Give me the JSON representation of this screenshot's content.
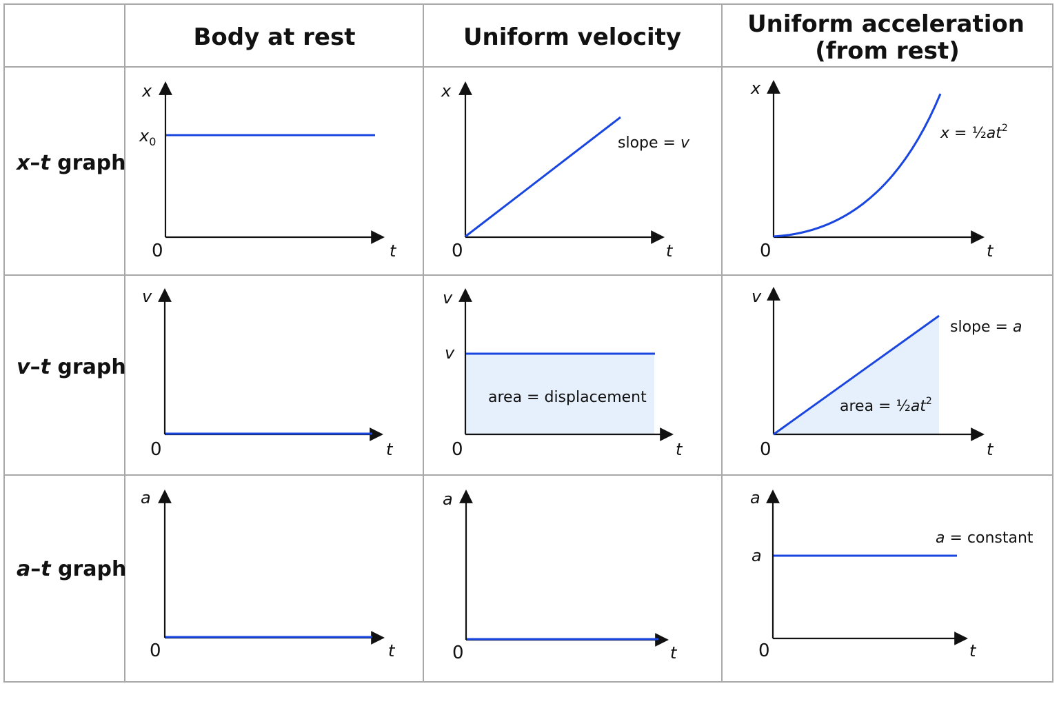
{
  "columns": {
    "rest": "Body at rest",
    "uniform_velocity": "Uniform velocity",
    "uniform_accel_line1": "Uniform acceleration",
    "uniform_accel_line2": "(from rest)"
  },
  "rows": {
    "xt": {
      "var": "x",
      "dash": "–",
      "var2": "t",
      "word": " graph"
    },
    "vt": {
      "var": "v",
      "dash": "–",
      "var2": "t",
      "word": " graph"
    },
    "at": {
      "var": "a",
      "dash": "–",
      "var2": "t",
      "word": " graph"
    }
  },
  "axis": {
    "zero": "0",
    "t": "t",
    "x": "x",
    "v": "v",
    "a": "a",
    "x0_base": "x",
    "x0_sub": "0"
  },
  "annotations": {
    "slope_v_prefix": "slope = ",
    "slope_v_var": "v",
    "x_half_at2_prefix": "x",
    "x_half_at2_mid": " = ½",
    "x_half_at2_var": "at",
    "x_half_at2_exp": "2",
    "v_level_label": "v",
    "area_displacement": "area = displacement",
    "slope_a_prefix": "slope = ",
    "slope_a_var": "a",
    "area_half_prefix": "area = ½",
    "area_half_var": "at",
    "area_half_exp": "2",
    "a_level_label": "a",
    "a_const_var": "a",
    "a_const_suffix": " = constant"
  },
  "colors": {
    "curve": "#1a46e0",
    "area_fill": "#e6effc",
    "grid_border": "#a8a8a8"
  }
}
